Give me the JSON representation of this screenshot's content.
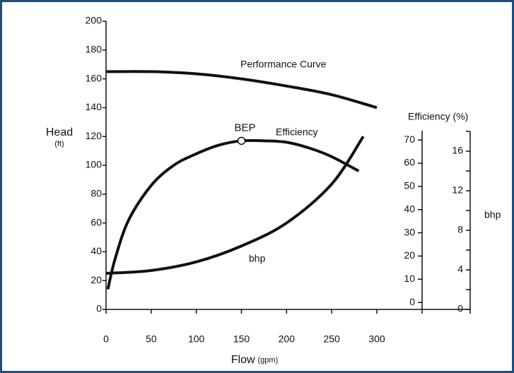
{
  "chart_data": {
    "type": "line",
    "y_label": "Head",
    "y_unit": "(ft)",
    "x_label": "Flow",
    "x_unit": "(gpm)",
    "xlim": [
      0,
      300
    ],
    "xticks": [
      0,
      50,
      100,
      150,
      200,
      250,
      300
    ],
    "ylim": [
      0,
      200
    ],
    "yticks": [
      0,
      20,
      40,
      60,
      80,
      100,
      120,
      140,
      160,
      180,
      200
    ],
    "series": [
      {
        "name": "Performance Curve",
        "color": "#111111",
        "x": [
          0,
          50,
          100,
          150,
          200,
          250,
          300
        ],
        "values": [
          165,
          165,
          163.5,
          160,
          155,
          149,
          140
        ]
      },
      {
        "name": "Efficiency",
        "color": "#111111",
        "x": [
          2,
          10,
          25,
          50,
          75,
          100,
          125,
          150,
          175,
          200,
          225,
          250,
          280
        ],
        "values": [
          14,
          35,
          62,
          86,
          100,
          108,
          114,
          117,
          117,
          116,
          112,
          106,
          96
        ]
      },
      {
        "name": "bhp",
        "color": "#111111",
        "x": [
          0,
          50,
          100,
          150,
          200,
          250,
          285
        ],
        "values": [
          25,
          27,
          33,
          44,
          60,
          87,
          120
        ]
      }
    ],
    "bep": {
      "label": "BEP",
      "x": 150,
      "value": 117
    },
    "efficiency_axis": {
      "label": "Efficiency (%)",
      "lim": [
        -3,
        74
      ],
      "ticks": [
        0,
        10,
        20,
        30,
        40,
        50,
        60,
        70
      ]
    },
    "bhp_axis": {
      "label": "bhp",
      "lim": [
        0,
        18
      ],
      "ticks": [
        0,
        4,
        8,
        12,
        16
      ],
      "minor_ticks": [
        2,
        6,
        10,
        14,
        18
      ]
    }
  }
}
